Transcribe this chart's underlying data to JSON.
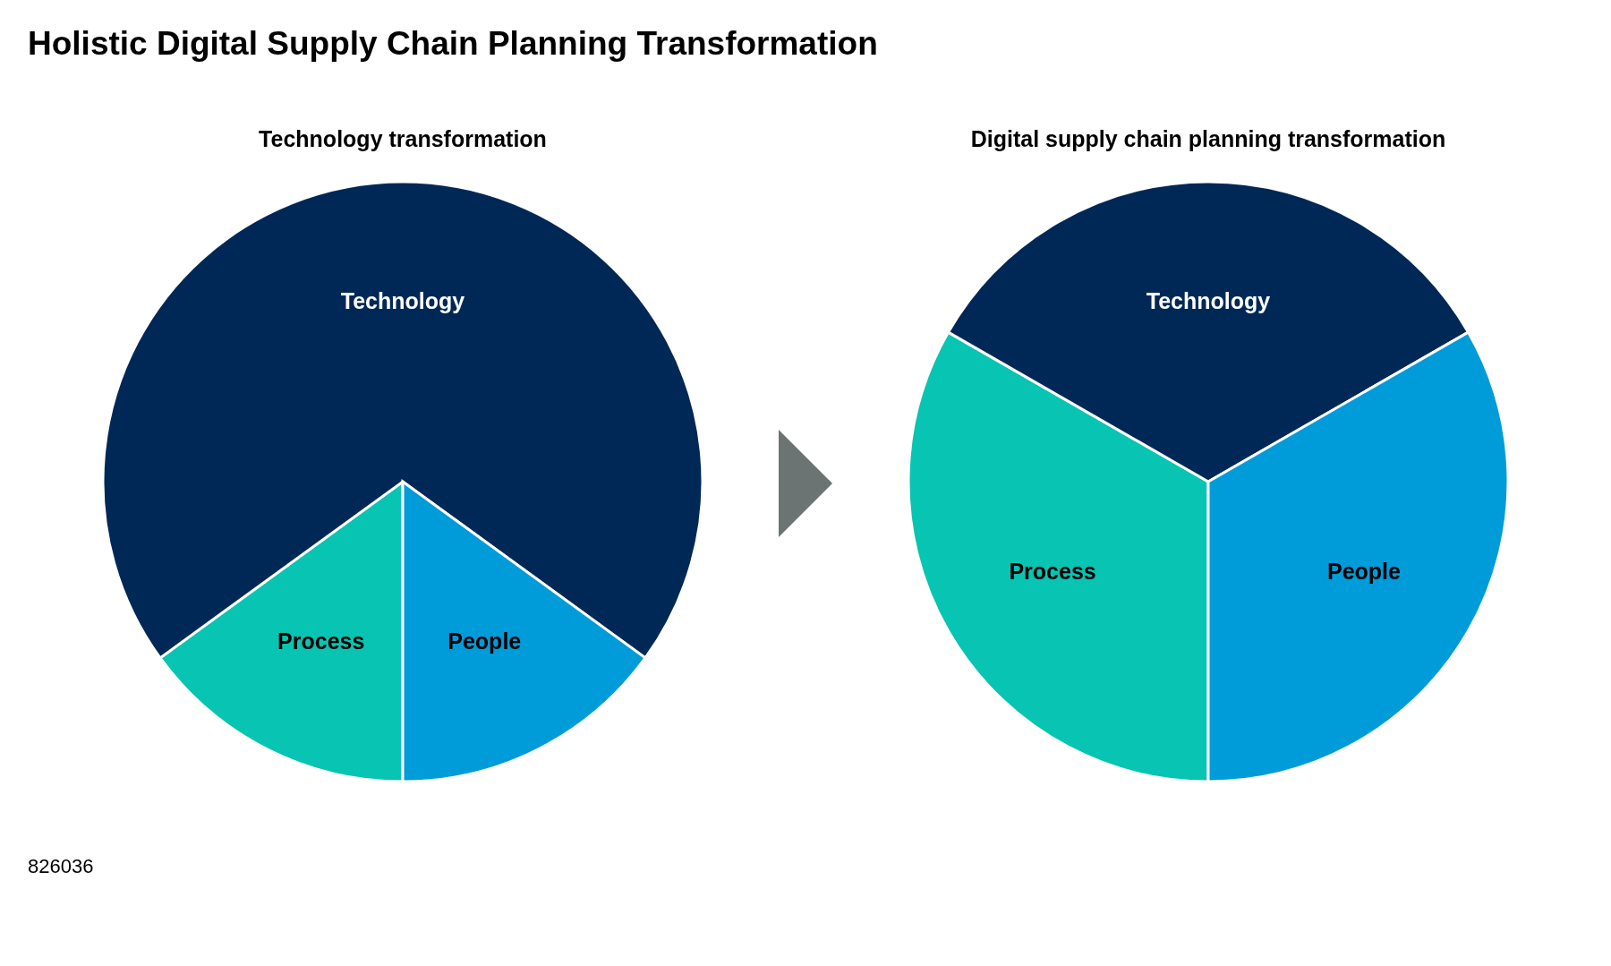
{
  "chart_data": [
    {
      "type": "pie",
      "title": "Holistic Digital Supply Chain Planning Transformation",
      "subtitle": "Technology transformation",
      "categories": [
        "Process",
        "Technology",
        "People"
      ],
      "values": [
        15,
        70,
        15
      ],
      "colors": [
        "#08c4b2",
        "#002856",
        "#009bd9"
      ],
      "annotations": [
        "826036"
      ]
    },
    {
      "type": "pie",
      "subtitle": "Digital supply chain planning transformation",
      "categories": [
        "Process",
        "Technology",
        "People"
      ],
      "values": [
        33.3,
        33.4,
        33.3
      ],
      "colors": [
        "#08c4b2",
        "#002856",
        "#009bd9"
      ]
    }
  ]
}
